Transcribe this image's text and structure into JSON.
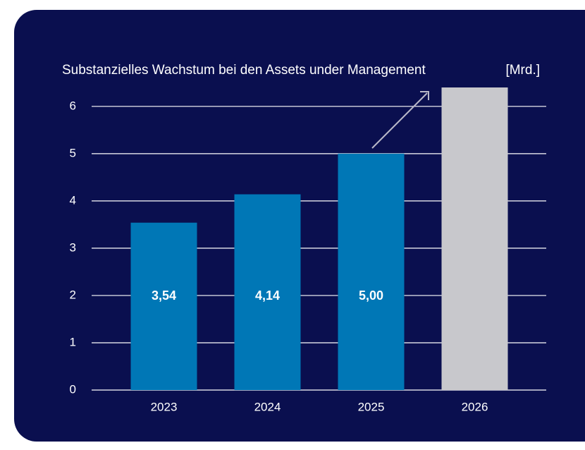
{
  "chart_data": {
    "type": "bar",
    "title": "Substanzielles Wachstum bei den Assets under Management",
    "unit": "[Mrd.]",
    "categories": [
      "2023",
      "2024",
      "2025",
      "2026"
    ],
    "values": [
      3.54,
      4.14,
      5.0,
      6.4
    ],
    "value_labels": [
      "3,54",
      "4,14",
      "5,00",
      null
    ],
    "colors": [
      "#0077b6",
      "#0077b6",
      "#0077b6",
      "#c8c8cc"
    ],
    "ylim": [
      0,
      6.4
    ],
    "yticks": [
      0,
      1,
      2,
      3,
      4,
      5,
      6
    ],
    "grid": true
  }
}
